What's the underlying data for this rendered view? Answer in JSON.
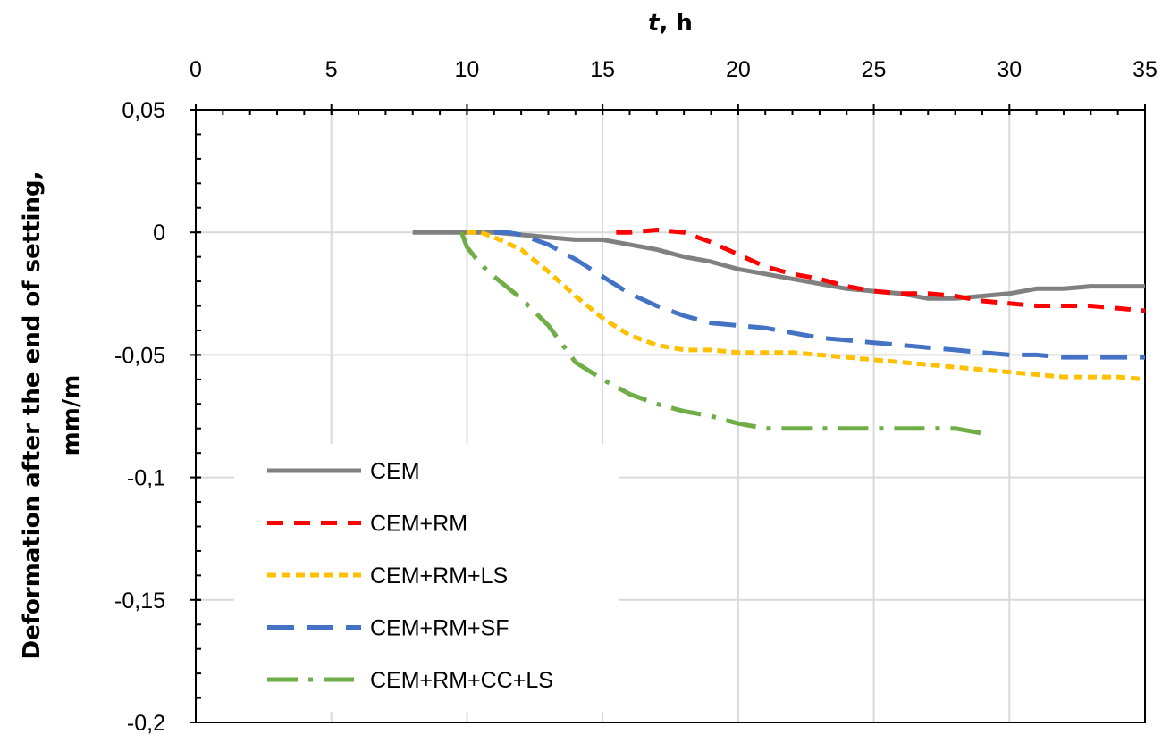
{
  "chart_data": {
    "type": "line",
    "xlabel_italic": "t",
    "xlabel_rest": ", h",
    "ylabel_line1": "Deformation after the end of setting,",
    "ylabel_line2": "mm/m",
    "xlim": [
      0,
      35
    ],
    "ylim": [
      -0.2,
      0.05
    ],
    "x_ticks": [
      0,
      5,
      10,
      15,
      20,
      25,
      30,
      35
    ],
    "x_tick_labels": [
      "0",
      "5",
      "10",
      "15",
      "20",
      "25",
      "30",
      "35"
    ],
    "y_ticks": [
      0.05,
      0,
      -0.05,
      -0.1,
      -0.15,
      -0.2
    ],
    "y_tick_labels": [
      "0,05",
      "0",
      "-0,05",
      "-0,1",
      "-0,15",
      "-0,2"
    ],
    "x_axis_position": "top",
    "grid": true,
    "legend_position": "bottom-left",
    "series": [
      {
        "name": "CEM",
        "color": "#808080",
        "dash": "solid",
        "points": [
          [
            8,
            0
          ],
          [
            10,
            0
          ],
          [
            11,
            0
          ],
          [
            12,
            -0.001
          ],
          [
            13,
            -0.002
          ],
          [
            14,
            -0.003
          ],
          [
            15,
            -0.003
          ],
          [
            16,
            -0.005
          ],
          [
            17,
            -0.007
          ],
          [
            18,
            -0.01
          ],
          [
            19,
            -0.012
          ],
          [
            20,
            -0.015
          ],
          [
            21,
            -0.017
          ],
          [
            22,
            -0.019
          ],
          [
            23,
            -0.021
          ],
          [
            24,
            -0.023
          ],
          [
            25,
            -0.024
          ],
          [
            26,
            -0.025
          ],
          [
            27,
            -0.027
          ],
          [
            28,
            -0.027
          ],
          [
            29,
            -0.026
          ],
          [
            30,
            -0.025
          ],
          [
            31,
            -0.023
          ],
          [
            32,
            -0.023
          ],
          [
            33,
            -0.022
          ],
          [
            34,
            -0.022
          ],
          [
            35,
            -0.022
          ]
        ]
      },
      {
        "name": "CEM+RM",
        "color": "#ff0000",
        "dash": "dashed",
        "points": [
          [
            15.5,
            0
          ],
          [
            16,
            0
          ],
          [
            17,
            0.001
          ],
          [
            18,
            0
          ],
          [
            19,
            -0.004
          ],
          [
            20,
            -0.009
          ],
          [
            21,
            -0.014
          ],
          [
            22,
            -0.017
          ],
          [
            23,
            -0.019
          ],
          [
            24,
            -0.022
          ],
          [
            25,
            -0.024
          ],
          [
            26,
            -0.025
          ],
          [
            27,
            -0.025
          ],
          [
            28,
            -0.026
          ],
          [
            29,
            -0.028
          ],
          [
            30,
            -0.029
          ],
          [
            31,
            -0.03
          ],
          [
            32,
            -0.03
          ],
          [
            33,
            -0.03
          ],
          [
            34,
            -0.031
          ],
          [
            35,
            -0.032
          ]
        ]
      },
      {
        "name": "CEM+RM+LS",
        "color": "#ffc000",
        "dash": "short-dashed",
        "points": [
          [
            10,
            0
          ],
          [
            10.5,
            0
          ],
          [
            11,
            -0.002
          ],
          [
            12,
            -0.007
          ],
          [
            13,
            -0.016
          ],
          [
            14,
            -0.026
          ],
          [
            15,
            -0.035
          ],
          [
            16,
            -0.042
          ],
          [
            17,
            -0.046
          ],
          [
            18,
            -0.048
          ],
          [
            19,
            -0.048
          ],
          [
            20,
            -0.049
          ],
          [
            21,
            -0.049
          ],
          [
            22,
            -0.049
          ],
          [
            23,
            -0.05
          ],
          [
            24,
            -0.051
          ],
          [
            25,
            -0.052
          ],
          [
            26,
            -0.053
          ],
          [
            27,
            -0.054
          ],
          [
            28,
            -0.055
          ],
          [
            29,
            -0.056
          ],
          [
            30,
            -0.057
          ],
          [
            31,
            -0.058
          ],
          [
            32,
            -0.059
          ],
          [
            33,
            -0.059
          ],
          [
            34,
            -0.059
          ],
          [
            35,
            -0.06
          ]
        ]
      },
      {
        "name": "CEM+RM+SF",
        "color": "#4472c4",
        "dash": "long-dashed",
        "points": [
          [
            11,
            0
          ],
          [
            11.5,
            0
          ],
          [
            12,
            -0.001
          ],
          [
            13,
            -0.005
          ],
          [
            14,
            -0.011
          ],
          [
            15,
            -0.018
          ],
          [
            16,
            -0.025
          ],
          [
            17,
            -0.03
          ],
          [
            18,
            -0.034
          ],
          [
            19,
            -0.037
          ],
          [
            20,
            -0.038
          ],
          [
            21,
            -0.039
          ],
          [
            22,
            -0.041
          ],
          [
            23,
            -0.043
          ],
          [
            24,
            -0.044
          ],
          [
            25,
            -0.045
          ],
          [
            26,
            -0.046
          ],
          [
            27,
            -0.047
          ],
          [
            28,
            -0.048
          ],
          [
            29,
            -0.049
          ],
          [
            30,
            -0.05
          ],
          [
            31,
            -0.05
          ],
          [
            32,
            -0.051
          ],
          [
            33,
            -0.051
          ],
          [
            34,
            -0.051
          ],
          [
            35,
            -0.051
          ]
        ]
      },
      {
        "name": "CEM+RM+CC+LS",
        "color": "#70ad47",
        "dash": "dash-dot",
        "points": [
          [
            9.8,
            0
          ],
          [
            10,
            -0.006
          ],
          [
            10.5,
            -0.013
          ],
          [
            11,
            -0.018
          ],
          [
            12,
            -0.027
          ],
          [
            13,
            -0.038
          ],
          [
            14,
            -0.053
          ],
          [
            15,
            -0.06
          ],
          [
            16,
            -0.066
          ],
          [
            17,
            -0.07
          ],
          [
            18,
            -0.073
          ],
          [
            19,
            -0.075
          ],
          [
            20,
            -0.078
          ],
          [
            21,
            -0.08
          ],
          [
            22,
            -0.08
          ],
          [
            23,
            -0.08
          ],
          [
            24,
            -0.08
          ],
          [
            25,
            -0.08
          ],
          [
            26,
            -0.08
          ],
          [
            27,
            -0.08
          ],
          [
            28,
            -0.08
          ],
          [
            29,
            -0.082
          ]
        ]
      }
    ]
  }
}
